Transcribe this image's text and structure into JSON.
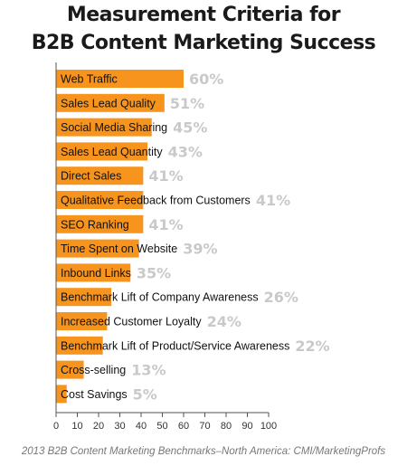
{
  "title_line1": "Measurement Criteria for",
  "title_line2": "B2B Content Marketing Success",
  "source": "2013 B2B Content Marketing Benchmarks–North America: CMI/MarketingProfs",
  "colors": {
    "bar": "#f7941d",
    "value_label": "#c9c9c9",
    "axis": "#555555",
    "text": "#111111"
  },
  "chart_data": {
    "type": "bar",
    "orientation": "horizontal",
    "title": "Measurement Criteria for B2B Content Marketing Success",
    "categories": [
      "Web Traffic",
      "Sales Lead Quality",
      "Social Media Sharing",
      "Sales Lead Quantity",
      "Direct Sales",
      "Qualitative Feedback from Customers",
      "SEO Ranking",
      "Time Spent on Website",
      "Inbound Links",
      "Benchmark Lift of Company Awareness",
      "Increased Customer Loyalty",
      "Benchmark Lift of Product/Service Awareness",
      "Cross-selling",
      "Cost Savings"
    ],
    "values": [
      60,
      51,
      45,
      43,
      41,
      41,
      41,
      39,
      35,
      26,
      24,
      22,
      13,
      5
    ],
    "value_labels": [
      "60%",
      "51%",
      "45%",
      "43%",
      "41%",
      "41%",
      "41%",
      "39%",
      "35%",
      "26%",
      "24%",
      "22%",
      "13%",
      "5%"
    ],
    "xlim": [
      0,
      100
    ],
    "xticks": [
      0,
      10,
      20,
      30,
      40,
      50,
      60,
      70,
      80,
      90,
      100
    ],
    "grid": false
  }
}
